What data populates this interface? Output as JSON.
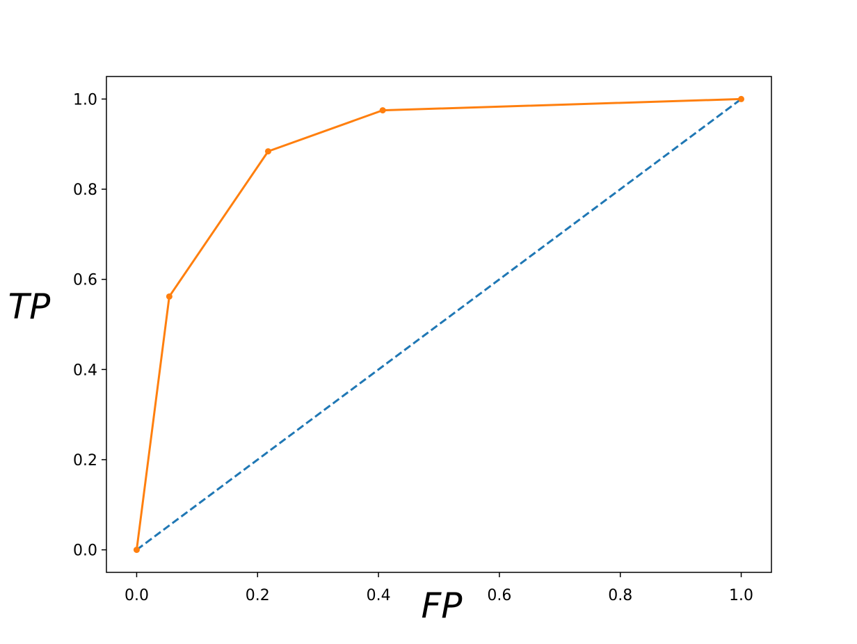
{
  "chart_data": {
    "type": "line",
    "x_label": "FP",
    "y_label": "TP",
    "xlim": [
      -0.05,
      1.05
    ],
    "ylim": [
      -0.05,
      1.05
    ],
    "xticks": [
      {
        "value": 0,
        "label": "0.0"
      },
      0.2,
      0.4,
      0.6,
      0.8,
      {
        "value": 1,
        "label": "1.0"
      }
    ],
    "yticks": [
      {
        "value": 0,
        "label": "0.0"
      },
      0.2,
      0.4,
      0.6,
      0.8,
      {
        "value": 1,
        "label": "1.0"
      }
    ],
    "series": [
      {
        "color": "#1f77b4",
        "dashed": true,
        "markers": false,
        "x": [
          0,
          1
        ],
        "values": [
          0,
          1
        ]
      },
      {
        "color": "#ff7f0e",
        "dashed": false,
        "markers": true,
        "x": [
          0,
          0.054,
          0.2175,
          0.407,
          1
        ],
        "values": [
          0,
          0.562,
          0.884,
          0.975,
          1
        ]
      }
    ]
  }
}
